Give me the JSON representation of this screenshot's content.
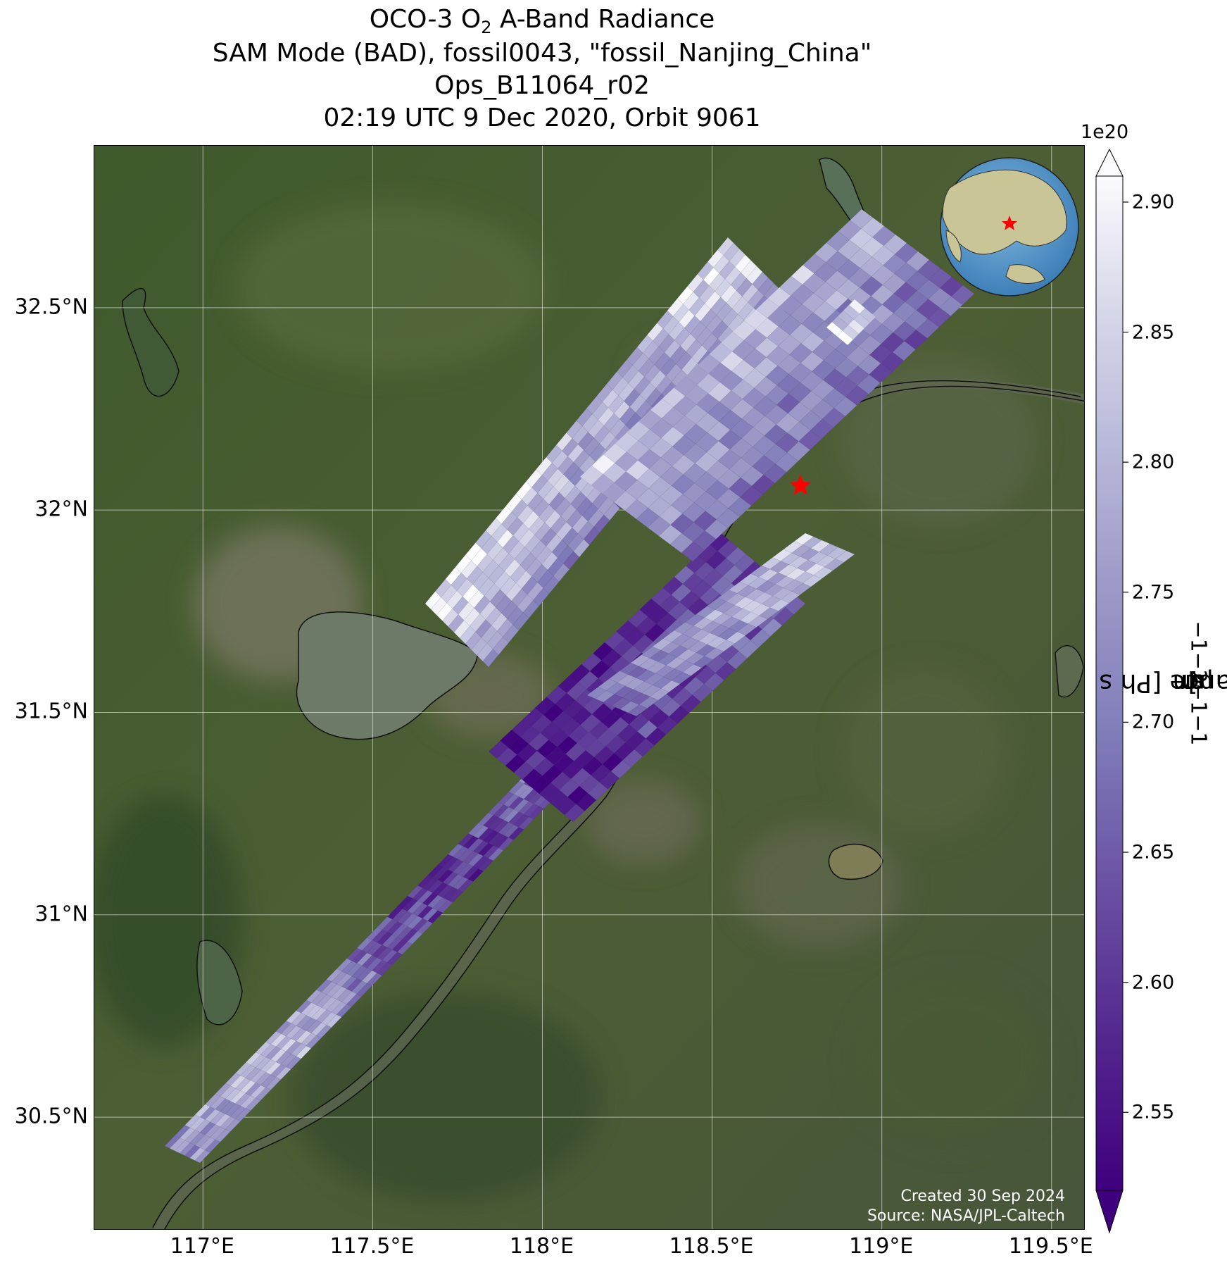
{
  "title": {
    "line1_prefix": "OCO-3 O",
    "line1_sub": "2",
    "line1_suffix": " A-Band Radiance",
    "line2": "SAM Mode (BAD), fossil0043, \"fossil_Nanjing_China\"",
    "line3": "Ops_B11064_r02",
    "line4": "02:19 UTC 9 Dec 2020, Orbit 9061"
  },
  "map": {
    "lon_range": [
      116.68,
      119.6
    ],
    "lat_range": [
      30.22,
      32.9
    ],
    "x_ticks": [
      {
        "value": 117.0,
        "label": "117°E"
      },
      {
        "value": 117.5,
        "label": "117.5°E"
      },
      {
        "value": 118.0,
        "label": "118°E"
      },
      {
        "value": 118.5,
        "label": "118.5°E"
      },
      {
        "value": 119.0,
        "label": "119°E"
      },
      {
        "value": 119.5,
        "label": "119.5°E"
      }
    ],
    "y_ticks": [
      {
        "value": 30.5,
        "label": "30.5°N"
      },
      {
        "value": 31.0,
        "label": "31°N"
      },
      {
        "value": 31.5,
        "label": "31.5°N"
      },
      {
        "value": 32.0,
        "label": "32°N"
      },
      {
        "value": 32.5,
        "label": "32.5°N"
      }
    ],
    "target": {
      "lon": 118.76,
      "lat": 32.06,
      "marker": "red-star",
      "color": "#ff0000"
    },
    "basemap": "satellite-imagery",
    "gridlines": true
  },
  "colorbar": {
    "colormap": "Purples_r",
    "min": 2.52,
    "max": 2.91,
    "extend": "both",
    "multiplier": "1e20",
    "ticks": [
      "2.55",
      "2.60",
      "2.65",
      "2.70",
      "2.75",
      "2.80",
      "2.85",
      "2.90"
    ],
    "label_main": "Radiance [Ph s",
    "label_parts": [
      "−1",
      " m",
      "−2",
      " sr",
      "−1",
      "μm",
      "−1",
      "]"
    ],
    "color_low": "#3f007d",
    "color_high": "#fcfbfd"
  },
  "inset": {
    "type": "globe",
    "marker": "red-star"
  },
  "credit": {
    "line1": "Created 30 Sep 2024",
    "line2": "Source: NASA/JPL-Caltech"
  }
}
